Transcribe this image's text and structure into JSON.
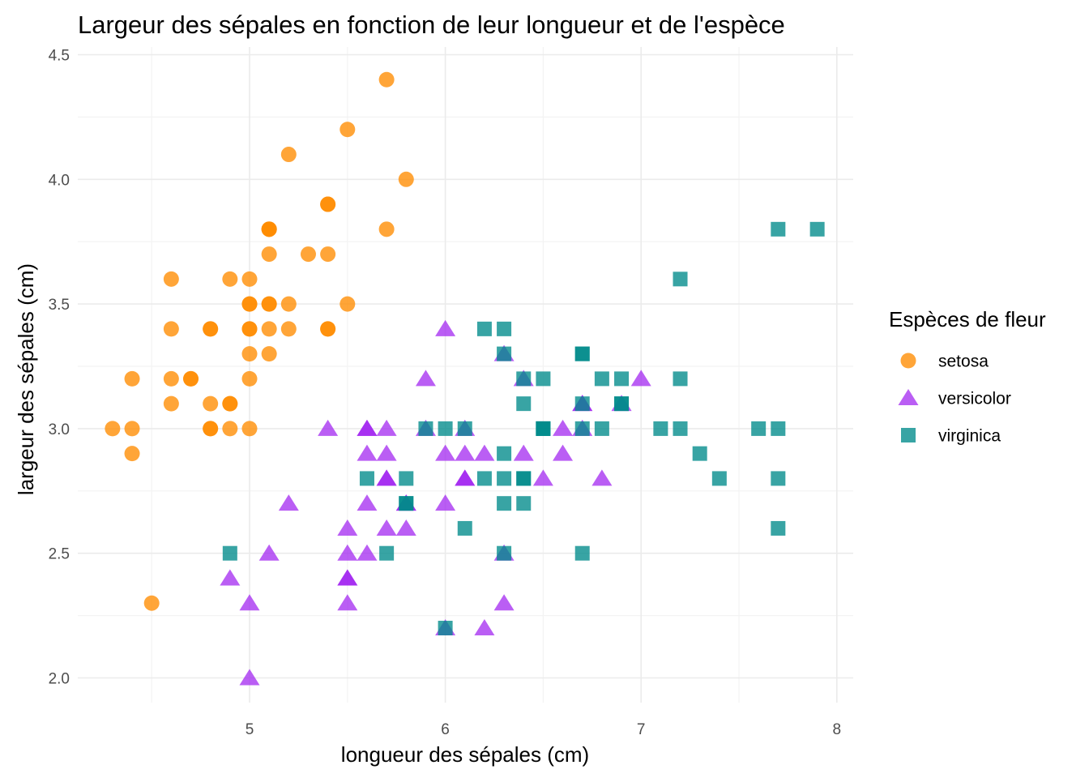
{
  "chart_data": {
    "type": "scatter",
    "title": "Largeur des sépales en fonction de leur longueur et de l'espèce",
    "xlabel": "longueur des sépales (cm)",
    "ylabel": "largeur des sépales (cm)",
    "xlim": [
      4.2,
      8.0
    ],
    "ylim": [
      1.9,
      4.5
    ],
    "x_ticks": [
      "5",
      "6",
      "7",
      "8"
    ],
    "y_ticks": [
      "2.0",
      "2.5",
      "3.0",
      "3.5",
      "4.0",
      "4.5"
    ],
    "grid": true,
    "legend": {
      "title": "Espèces de fleur",
      "position": "right"
    },
    "series": [
      {
        "name": "setosa",
        "shape": "circle",
        "color": "#FF8C00",
        "points": [
          [
            5.1,
            3.5
          ],
          [
            4.9,
            3.0
          ],
          [
            4.7,
            3.2
          ],
          [
            4.6,
            3.1
          ],
          [
            5.0,
            3.6
          ],
          [
            5.4,
            3.9
          ],
          [
            4.6,
            3.4
          ],
          [
            5.0,
            3.4
          ],
          [
            4.4,
            2.9
          ],
          [
            4.9,
            3.1
          ],
          [
            5.4,
            3.7
          ],
          [
            4.8,
            3.4
          ],
          [
            4.8,
            3.0
          ],
          [
            4.3,
            3.0
          ],
          [
            5.8,
            4.0
          ],
          [
            5.7,
            4.4
          ],
          [
            5.4,
            3.9
          ],
          [
            5.1,
            3.5
          ],
          [
            5.7,
            3.8
          ],
          [
            5.1,
            3.8
          ],
          [
            5.4,
            3.4
          ],
          [
            5.1,
            3.7
          ],
          [
            4.6,
            3.6
          ],
          [
            5.1,
            3.3
          ],
          [
            4.8,
            3.4
          ],
          [
            5.0,
            3.0
          ],
          [
            5.0,
            3.4
          ],
          [
            5.2,
            3.5
          ],
          [
            5.2,
            3.4
          ],
          [
            4.7,
            3.2
          ],
          [
            4.8,
            3.1
          ],
          [
            5.4,
            3.4
          ],
          [
            5.2,
            4.1
          ],
          [
            5.5,
            4.2
          ],
          [
            4.9,
            3.1
          ],
          [
            5.0,
            3.2
          ],
          [
            5.5,
            3.5
          ],
          [
            4.9,
            3.6
          ],
          [
            4.4,
            3.0
          ],
          [
            5.1,
            3.4
          ],
          [
            5.0,
            3.5
          ],
          [
            4.5,
            2.3
          ],
          [
            4.4,
            3.2
          ],
          [
            5.0,
            3.5
          ],
          [
            5.1,
            3.8
          ],
          [
            4.8,
            3.0
          ],
          [
            5.1,
            3.8
          ],
          [
            4.6,
            3.2
          ],
          [
            5.3,
            3.7
          ],
          [
            5.0,
            3.3
          ]
        ]
      },
      {
        "name": "versicolor",
        "shape": "triangle",
        "color": "#A020F0",
        "points": [
          [
            7.0,
            3.2
          ],
          [
            6.4,
            3.2
          ],
          [
            6.9,
            3.1
          ],
          [
            5.5,
            2.3
          ],
          [
            6.5,
            2.8
          ],
          [
            5.7,
            2.8
          ],
          [
            6.3,
            3.3
          ],
          [
            4.9,
            2.4
          ],
          [
            6.6,
            2.9
          ],
          [
            5.2,
            2.7
          ],
          [
            5.0,
            2.0
          ],
          [
            5.9,
            3.0
          ],
          [
            6.0,
            2.2
          ],
          [
            6.1,
            2.9
          ],
          [
            5.6,
            2.9
          ],
          [
            6.7,
            3.1
          ],
          [
            5.6,
            3.0
          ],
          [
            5.8,
            2.7
          ],
          [
            6.2,
            2.2
          ],
          [
            5.6,
            2.5
          ],
          [
            5.9,
            3.2
          ],
          [
            6.1,
            2.8
          ],
          [
            6.3,
            2.5
          ],
          [
            6.1,
            2.8
          ],
          [
            6.4,
            2.9
          ],
          [
            6.6,
            3.0
          ],
          [
            6.8,
            2.8
          ],
          [
            6.7,
            3.0
          ],
          [
            6.0,
            2.9
          ],
          [
            5.7,
            2.6
          ],
          [
            5.5,
            2.4
          ],
          [
            5.5,
            2.4
          ],
          [
            5.8,
            2.7
          ],
          [
            6.0,
            2.7
          ],
          [
            5.4,
            3.0
          ],
          [
            6.0,
            3.4
          ],
          [
            6.7,
            3.1
          ],
          [
            6.3,
            2.3
          ],
          [
            5.6,
            3.0
          ],
          [
            5.5,
            2.5
          ],
          [
            5.5,
            2.6
          ],
          [
            6.1,
            3.0
          ],
          [
            5.8,
            2.6
          ],
          [
            5.0,
            2.3
          ],
          [
            5.6,
            2.7
          ],
          [
            5.7,
            3.0
          ],
          [
            5.7,
            2.9
          ],
          [
            6.2,
            2.9
          ],
          [
            5.1,
            2.5
          ],
          [
            5.7,
            2.8
          ]
        ]
      },
      {
        "name": "virginica",
        "shape": "square",
        "color": "#008B8B",
        "points": [
          [
            6.3,
            3.3
          ],
          [
            5.8,
            2.7
          ],
          [
            7.1,
            3.0
          ],
          [
            6.3,
            2.9
          ],
          [
            6.5,
            3.0
          ],
          [
            7.6,
            3.0
          ],
          [
            4.9,
            2.5
          ],
          [
            7.3,
            2.9
          ],
          [
            6.7,
            2.5
          ],
          [
            7.2,
            3.6
          ],
          [
            6.5,
            3.2
          ],
          [
            6.4,
            2.7
          ],
          [
            6.8,
            3.0
          ],
          [
            5.7,
            2.5
          ],
          [
            5.8,
            2.8
          ],
          [
            6.4,
            3.2
          ],
          [
            6.5,
            3.0
          ],
          [
            7.7,
            3.8
          ],
          [
            7.7,
            2.6
          ],
          [
            6.0,
            2.2
          ],
          [
            6.9,
            3.2
          ],
          [
            5.6,
            2.8
          ],
          [
            7.7,
            2.8
          ],
          [
            6.3,
            2.7
          ],
          [
            6.7,
            3.3
          ],
          [
            7.2,
            3.2
          ],
          [
            6.2,
            2.8
          ],
          [
            6.1,
            3.0
          ],
          [
            6.4,
            2.8
          ],
          [
            7.2,
            3.0
          ],
          [
            7.4,
            2.8
          ],
          [
            7.9,
            3.8
          ],
          [
            6.4,
            2.8
          ],
          [
            6.3,
            2.8
          ],
          [
            6.1,
            2.6
          ],
          [
            7.7,
            3.0
          ],
          [
            6.3,
            3.4
          ],
          [
            6.4,
            3.1
          ],
          [
            6.0,
            3.0
          ],
          [
            6.9,
            3.1
          ],
          [
            6.7,
            3.1
          ],
          [
            6.9,
            3.1
          ],
          [
            5.8,
            2.7
          ],
          [
            6.8,
            3.2
          ],
          [
            6.7,
            3.3
          ],
          [
            6.7,
            3.0
          ],
          [
            6.3,
            2.5
          ],
          [
            6.5,
            3.0
          ],
          [
            6.2,
            3.4
          ],
          [
            5.9,
            3.0
          ]
        ]
      }
    ]
  }
}
